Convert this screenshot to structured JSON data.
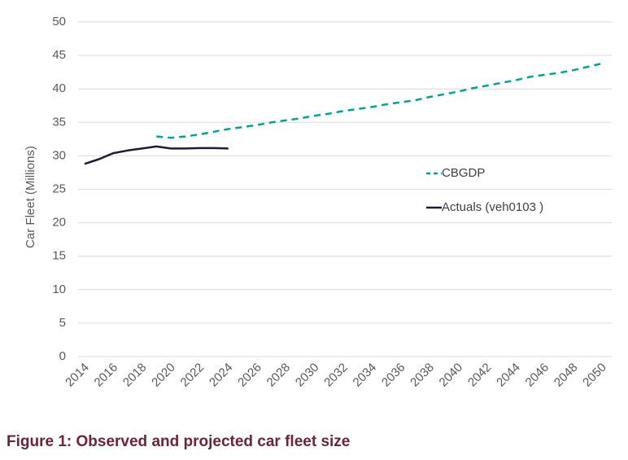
{
  "caption": "Figure 1: Observed and projected car fleet size",
  "chart_data": {
    "type": "line",
    "title": "",
    "xlabel": "",
    "ylabel": "Car Fleet (Millions)",
    "ylim": [
      0,
      50
    ],
    "xlim": [
      2014,
      2050
    ],
    "y_ticks": [
      "0",
      "5",
      "10",
      "15",
      "20",
      "25",
      "30",
      "35",
      "40",
      "45",
      "50"
    ],
    "x_ticks": [
      "2014",
      "2016",
      "2018",
      "2020",
      "2022",
      "2024",
      "2026",
      "2028",
      "2030",
      "2032",
      "2034",
      "2036",
      "2038",
      "2040",
      "2042",
      "2044",
      "2046",
      "2048",
      "2050"
    ],
    "grid": true,
    "legend_position": "right-middle",
    "series": [
      {
        "name": "CBGDP",
        "style": "dashed",
        "color": "#00a19a",
        "x": [
          2019,
          2020,
          2021,
          2022,
          2023,
          2024,
          2025,
          2026,
          2027,
          2028,
          2029,
          2030,
          2031,
          2032,
          2033,
          2034,
          2035,
          2036,
          2037,
          2038,
          2039,
          2040,
          2041,
          2042,
          2043,
          2044,
          2045,
          2046,
          2047,
          2048,
          2049,
          2050
        ],
        "values": [
          32.9,
          32.7,
          32.9,
          33.2,
          33.6,
          34.0,
          34.3,
          34.6,
          35.0,
          35.3,
          35.6,
          36.0,
          36.3,
          36.7,
          37.0,
          37.3,
          37.7,
          38.0,
          38.3,
          38.8,
          39.2,
          39.6,
          40.1,
          40.5,
          40.9,
          41.3,
          41.8,
          42.1,
          42.4,
          42.8,
          43.3,
          43.8
        ]
      },
      {
        "name": "Actuals (veh0103 )",
        "style": "solid",
        "color": "#1c1c3a",
        "x": [
          2014,
          2015,
          2016,
          2017,
          2018,
          2019,
          2020,
          2021,
          2022,
          2023,
          2024
        ],
        "values": [
          28.8,
          29.5,
          30.4,
          30.8,
          31.1,
          31.4,
          31.1,
          31.1,
          31.15,
          31.15,
          31.1
        ]
      }
    ]
  }
}
